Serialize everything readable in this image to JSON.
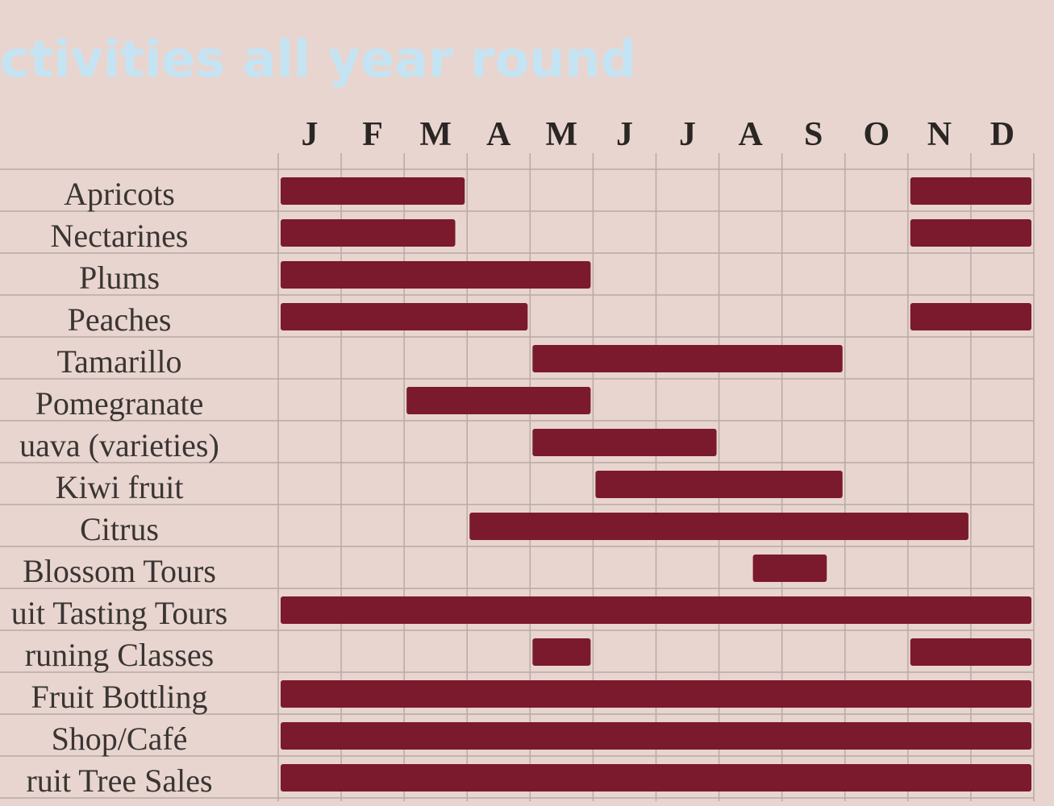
{
  "chart_data": {
    "type": "gantt",
    "title": "ctivities all year round",
    "categories": [
      "J",
      "F",
      "M",
      "A",
      "M",
      "J",
      "J",
      "A",
      "S",
      "O",
      "N",
      "D"
    ],
    "xlim": [
      0,
      12
    ],
    "color": "#7b1a2c",
    "grid": true,
    "tasks": [
      {
        "name": "Apricots",
        "spans": [
          [
            0,
            3
          ],
          [
            10,
            12
          ]
        ]
      },
      {
        "name": "Nectarines",
        "spans": [
          [
            0,
            2.85
          ],
          [
            10,
            12
          ]
        ]
      },
      {
        "name": "Plums",
        "spans": [
          [
            0,
            5
          ]
        ]
      },
      {
        "name": "Peaches",
        "spans": [
          [
            0,
            4
          ],
          [
            10,
            12
          ]
        ]
      },
      {
        "name": "Tamarillo",
        "spans": [
          [
            4,
            9
          ]
        ]
      },
      {
        "name": "Pomegranate",
        "spans": [
          [
            2,
            5
          ]
        ]
      },
      {
        "name": "uava (varieties)",
        "spans": [
          [
            4,
            7
          ]
        ]
      },
      {
        "name": "Kiwi fruit",
        "spans": [
          [
            5,
            9
          ]
        ]
      },
      {
        "name": "Citrus",
        "spans": [
          [
            3,
            11
          ]
        ]
      },
      {
        "name": "Blossom Tours",
        "spans": [
          [
            7.5,
            8.75
          ]
        ]
      },
      {
        "name": "uit Tasting Tours",
        "spans": [
          [
            0,
            12
          ]
        ]
      },
      {
        "name": "runing Classes",
        "spans": [
          [
            4,
            5
          ],
          [
            10,
            12
          ]
        ]
      },
      {
        "name": "Fruit Bottling",
        "spans": [
          [
            0,
            12
          ]
        ]
      },
      {
        "name": "Shop/Café",
        "spans": [
          [
            0,
            12
          ]
        ]
      },
      {
        "name": "ruit Tree Sales",
        "spans": [
          [
            0,
            12
          ]
        ]
      }
    ]
  }
}
